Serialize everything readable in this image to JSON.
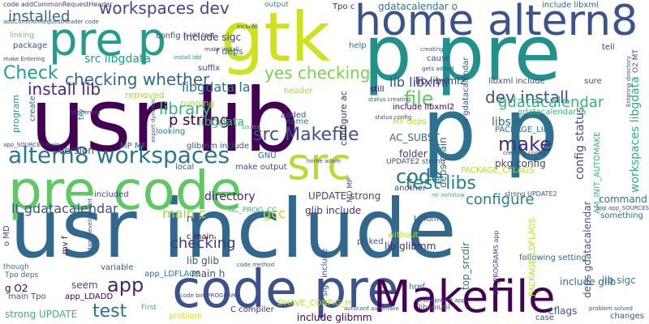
{
  "words": [
    {
      "text": "usr lib",
      "color": "#440154"
    },
    {
      "text": "usr include",
      "color": "#31688e"
    },
    {
      "text": "p pre",
      "color": "#21918c"
    },
    {
      "text": "p p",
      "color": "#2c728e"
    },
    {
      "text": "code pre",
      "color": "#3b528b"
    },
    {
      "text": "pre code",
      "color": "#5ec962"
    },
    {
      "text": "gtk",
      "color": "#cde11d"
    },
    {
      "text": "Makefile",
      "color": "#440154"
    },
    {
      "text": "home altern8",
      "color": "#3b528b"
    },
    {
      "text": "pre p",
      "color": "#1f9e89"
    },
    {
      "text": "src",
      "color": "#b5de2b"
    },
    {
      "text": "altern8 workspaces",
      "color": "#2a788e"
    },
    {
      "text": "file",
      "color": "#5ec962"
    },
    {
      "text": "code",
      "color": "#2c728e"
    },
    {
      "text": "make",
      "color": "#472d7b"
    },
    {
      "text": "library",
      "color": "#35b779"
    },
    {
      "text": "checking whether",
      "color": "#31688e"
    },
    {
      "text": "dev install",
      "color": "#3b528b"
    },
    {
      "text": "yes checking",
      "color": "#7ad151"
    },
    {
      "text": "src Makefile",
      "color": "#3b528b"
    },
    {
      "text": "test libs",
      "color": "#26828e"
    },
    {
      "text": "install lib",
      "color": "#472d7b"
    },
    {
      "text": "Check",
      "color": "#1f9e89"
    },
    {
      "text": "app",
      "color": "#482475"
    },
    {
      "text": "test",
      "color": "#2c728e"
    },
    {
      "text": "workspaces dev",
      "color": "#3e4989"
    },
    {
      "text": "installed",
      "color": "#31688e"
    },
    {
      "text": "gdatacalendar",
      "color": "#35b779"
    },
    {
      "text": "lt gdatacalendar",
      "color": "#3b528b"
    },
    {
      "text": "p strong",
      "color": "#440154"
    },
    {
      "text": "checking",
      "color": "#443a83"
    },
    {
      "text": "configure",
      "color": "#26828e"
    },
    {
      "text": "lib libxml",
      "color": "#3b528b"
    },
    {
      "text": "gcc",
      "color": "#b5de2b"
    },
    {
      "text": "main c",
      "color": "#a0da39"
    },
    {
      "text": "libgdata la",
      "color": "#2c728e"
    },
    {
      "text": "src libgdata",
      "color": "#1fa187"
    },
    {
      "text": "code addCommonRequestHeader",
      "color": "#443a83"
    },
    {
      "text": "config h",
      "color": "#3e4989"
    },
    {
      "text": "include sigc",
      "color": "#46327e"
    },
    {
      "text": "gdatacalendar o",
      "color": "#2a788e"
    },
    {
      "text": "include libxml",
      "color": "#31688e"
    },
    {
      "text": "Tpo c",
      "color": "#482878"
    },
    {
      "text": "output",
      "color": "#21918c"
    },
    {
      "text": "f deps",
      "color": "#2c728e"
    },
    {
      "text": "ldd test",
      "color": "#481a6c"
    },
    {
      "text": "install ldd",
      "color": "#21918c"
    },
    {
      "text": "package",
      "color": "#3b528b"
    },
    {
      "text": "linking",
      "color": "#6ece58"
    },
    {
      "text": "suffix",
      "color": "#404688"
    },
    {
      "text": "libgdata",
      "color": "#35b779"
    },
    {
      "text": "glibmm include",
      "color": "#3b528b"
    },
    {
      "text": "AC_SUBST",
      "color": "#31688e"
    },
    {
      "text": "PACKAGE_LIBS",
      "color": "#2c728e"
    },
    {
      "text": "libs lt",
      "color": "#31688e"
    },
    {
      "text": "lib libxml2",
      "color": "#472d7b"
    },
    {
      "text": "include libxml2",
      "color": "#440154"
    },
    {
      "text": "libxml include",
      "color": "#3e4989"
    },
    {
      "text": "configure ac",
      "color": "#472d7b"
    },
    {
      "text": "deps main",
      "color": "#31688e"
    },
    {
      "text": "folder",
      "color": "#443a83"
    },
    {
      "text": "pkg config",
      "color": "#433e85"
    },
    {
      "text": "PACKAGE_CFLAGS",
      "color": "#b5de2b"
    },
    {
      "text": "config status",
      "color": "#3e4989"
    },
    {
      "text": "workspaces libgdata",
      "color": "#2ab07f"
    },
    {
      "text": "command",
      "color": "#2c728e"
    },
    {
      "text": "directory",
      "color": "#482475"
    },
    {
      "text": "UPDATE strong",
      "color": "#404688"
    },
    {
      "text": "glib include",
      "color": "#472d7b"
    },
    {
      "text": "lib glibmm",
      "color": "#482878"
    },
    {
      "text": "lib glib",
      "color": "#3b528b"
    },
    {
      "text": "main h",
      "color": "#3e4989"
    },
    {
      "text": "include glib",
      "color": "#31688e"
    },
    {
      "text": "strong UPDATE",
      "color": "#35b779"
    },
    {
      "text": "main Tpo",
      "color": "#3b528b"
    },
    {
      "text": "app_LDADD",
      "color": "#440154"
    },
    {
      "text": "seem",
      "color": "#3e4989"
    },
    {
      "text": "g O2",
      "color": "#440154"
    },
    {
      "text": "Tpo deps",
      "color": "#31688e"
    },
    {
      "text": "cflags",
      "color": "#3b528b"
    },
    {
      "text": "lib sigc",
      "color": "#26828e"
    },
    {
      "text": "include glibmm",
      "color": "#440154"
    },
    {
      "text": "C compiler",
      "color": "#472d7b"
    },
    {
      "text": "problem",
      "color": "#d8e219"
    },
    {
      "text": "First",
      "color": "#35b779"
    },
    {
      "text": "href",
      "color": "#2c728e"
    },
    {
      "text": "libapiutil",
      "color": "#3b528b"
    },
    {
      "text": "DHAVE_CONFIG_H",
      "color": "#b5de2b"
    },
    {
      "text": "app_LDFLAGS",
      "color": "#2a788e"
    },
    {
      "text": "run",
      "color": "#3b528b"
    },
    {
      "text": "c main",
      "color": "#440154"
    },
    {
      "text": "MP MF",
      "color": "#31688e"
    },
    {
      "text": "make output",
      "color": "#3e4989"
    },
    {
      "text": "GNU",
      "color": "#31688e"
    },
    {
      "text": "version",
      "color": "#3e4989"
    },
    {
      "text": "program",
      "color": "#1f9e89"
    },
    {
      "text": "create",
      "color": "#31688e"
    },
    {
      "text": "header",
      "color": "#a0da39"
    },
    {
      "text": "name",
      "color": "#2a788e"
    },
    {
      "text": "added",
      "color": "#3b528b"
    },
    {
      "text": "still",
      "color": "#440154"
    },
    {
      "text": "help",
      "color": "#2c728e"
    },
    {
      "text": "cause",
      "color": "#3e4989"
    },
    {
      "text": "tell",
      "color": "#443a83"
    },
    {
      "text": "sure",
      "color": "#3e4989"
    },
    {
      "text": "removed",
      "color": "#a0da39"
    },
    {
      "text": "looking",
      "color": "#2a788e"
    },
    {
      "text": "another",
      "color": "#3e4989"
    },
    {
      "text": "picked",
      "color": "#3b528b"
    },
    {
      "text": "following setting",
      "color": "#31688e"
    },
    {
      "text": "something",
      "color": "#31688e"
    },
    {
      "text": "without",
      "color": "#b5de2b"
    },
    {
      "text": "included",
      "color": "#3e4989"
    },
    {
      "text": "variable",
      "color": "#3b528b"
    },
    {
      "text": "though",
      "color": "#2a788e"
    },
    {
      "text": "AC_PROG_CC",
      "color": "#35b779"
    },
    {
      "text": "L home",
      "color": "#3b528b"
    },
    {
      "text": "MF deps",
      "color": "#b5de2b"
    },
    {
      "text": "changes",
      "color": "#3b528b"
    },
    {
      "text": "case",
      "color": "#3b528b"
    },
    {
      "text": "AM_INIT_AUTOMAKE",
      "color": "#35b779"
    },
    {
      "text": "O2 MT",
      "color": "#3b528b"
    },
    {
      "text": "bin_PROGRAMS app",
      "color": "#3e4989"
    },
    {
      "text": "top_srcdir",
      "color": "#31688e"
    },
    {
      "text": "deps gdatacalendar",
      "color": "#3b528b"
    },
    {
      "text": "PACKAGE_LDFLAGS",
      "color": "#b5de2b"
    },
    {
      "text": "o gdatacalendar",
      "color": "#3b528b"
    },
    {
      "text": "gdatacalendar la",
      "color": "#35b779"
    },
    {
      "text": "sigc include",
      "color": "#3e4989"
    },
    {
      "text": "o MD",
      "color": "#3e4989"
    },
    {
      "text": "mv f",
      "color": "#440154"
    },
    {
      "text": "MD MP",
      "color": "#3b528b"
    },
    {
      "text": "UPDATE2 strong",
      "color": "#3e4989"
    },
    {
      "text": "strong UPDATE2",
      "color": "#3b528b"
    },
    {
      "text": "status config",
      "color": "#3b528b"
    },
    {
      "text": "gets added",
      "color": "#3e4989"
    },
    {
      "text": "creating",
      "color": "#3b528b"
    },
    {
      "text": "code method",
      "color": "#3b528b"
    },
    {
      "text": "code bin_PROGRAMS",
      "color": "#3e4989"
    },
    {
      "text": "adam Development",
      "color": "#3b528b"
    },
    {
      "text": "development app",
      "color": "#3e4989"
    },
    {
      "text": "rel nofollow",
      "color": "#35b779"
    },
    {
      "text": "autoconf automake",
      "color": "#3b528b"
    },
    {
      "text": "problem solved",
      "color": "#3b528b"
    },
    {
      "text": "Entering directory",
      "color": "#3b528b"
    },
    {
      "text": "make Entering",
      "color": "#3e4989"
    },
    {
      "text": "export dynamic",
      "color": "#3b528b"
    },
    {
      "text": "app_SOURCES main",
      "color": "#3e4989"
    },
    {
      "text": "app app_SOURCES",
      "color": "#3b528b"
    },
    {
      "text": "status creating",
      "color": "#3b528b"
    },
    {
      "text": "creating config",
      "color": "#3e4989"
    },
    {
      "text": "source",
      "color": "#35b779"
    },
    {
      "text": "local",
      "color": "#3b528b"
    },
    {
      "text": "happening",
      "color": "#3e4989"
    },
    {
      "text": "running",
      "color": "#a0da39"
    },
    {
      "text": "addCommonRequestHeader code",
      "color": "#3b528b"
    },
    {
      "text": "include",
      "color": "#3b528b"
    },
    {
      "text": "home adam",
      "color": "#3e4989"
    },
    {
      "text": "try",
      "color": "#2a788e"
    },
    {
      "text": "make install",
      "color": "#3e4989"
    }
  ]
}
